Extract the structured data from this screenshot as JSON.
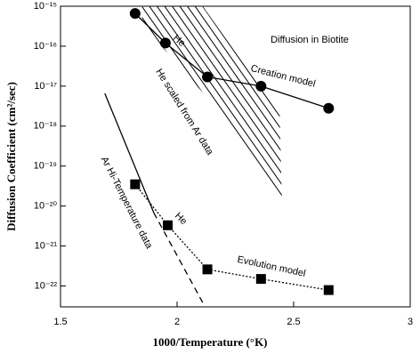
{
  "chart_data": {
    "type": "scatter-line",
    "xlabel": "1000/Temperature (°K)",
    "ylabel": "Diffusion Coefficient (cm²/sec)",
    "log_y": true,
    "xlim": [
      1.5,
      3
    ],
    "xticks": [
      1.5,
      2,
      2.5,
      3
    ],
    "ylim": [
      3e-23,
      1e-15
    ],
    "yticks": [
      {
        "value": 1e-15,
        "label": "10⁻¹⁵"
      },
      {
        "value": 1e-16,
        "label": "10⁻¹⁶"
      },
      {
        "value": 1e-17,
        "label": "10⁻¹⁷"
      },
      {
        "value": 1e-18,
        "label": "10⁻¹⁸"
      },
      {
        "value": 1e-19,
        "label": "10⁻¹⁹"
      },
      {
        "value": 1e-20,
        "label": "10⁻²⁰"
      },
      {
        "value": 1e-21,
        "label": "10⁻²¹"
      },
      {
        "value": 1e-22,
        "label": "10⁻²²"
      }
    ],
    "series": [
      {
        "name": "Creation model",
        "marker": "circle",
        "line_styles": [
          "solid"
        ],
        "color": "#000000",
        "x": [
          1.82,
          1.95,
          2.13,
          2.36,
          2.65
        ],
        "values": [
          6.6e-16,
          1.2e-16,
          1.7e-17,
          1e-17,
          2.8e-18
        ]
      },
      {
        "name": "Evolution model",
        "marker": "square",
        "line_styles": [
          "dotted"
        ],
        "color": "#000000",
        "x": [
          1.82,
          1.96,
          2.13,
          2.36,
          2.65
        ],
        "values": [
          3.5e-20,
          3.3e-21,
          2.6e-22,
          1.5e-22,
          7.9e-23
        ]
      },
      {
        "name": "Ar Hi-Temperature data",
        "marker": "none",
        "line_styles": [
          "solid",
          "dashed"
        ],
        "color": "#000000",
        "x": [
          1.69,
          1.9,
          2.12
        ],
        "values": [
          6.6e-18,
          6.8e-21,
          3e-23
        ]
      }
    ],
    "shaded_region": {
      "name": "He scaled from Ar data",
      "x": [
        1.85,
        2.11,
        2.44,
        2.45,
        2.14,
        1.85
      ],
      "values": [
        1e-15,
        1e-15,
        2e-18,
        1.3e-20,
        4.4e-18,
        3.5e-16
      ]
    },
    "annotations": [
      "Diffusion in Biotite",
      "He",
      "He"
    ]
  }
}
